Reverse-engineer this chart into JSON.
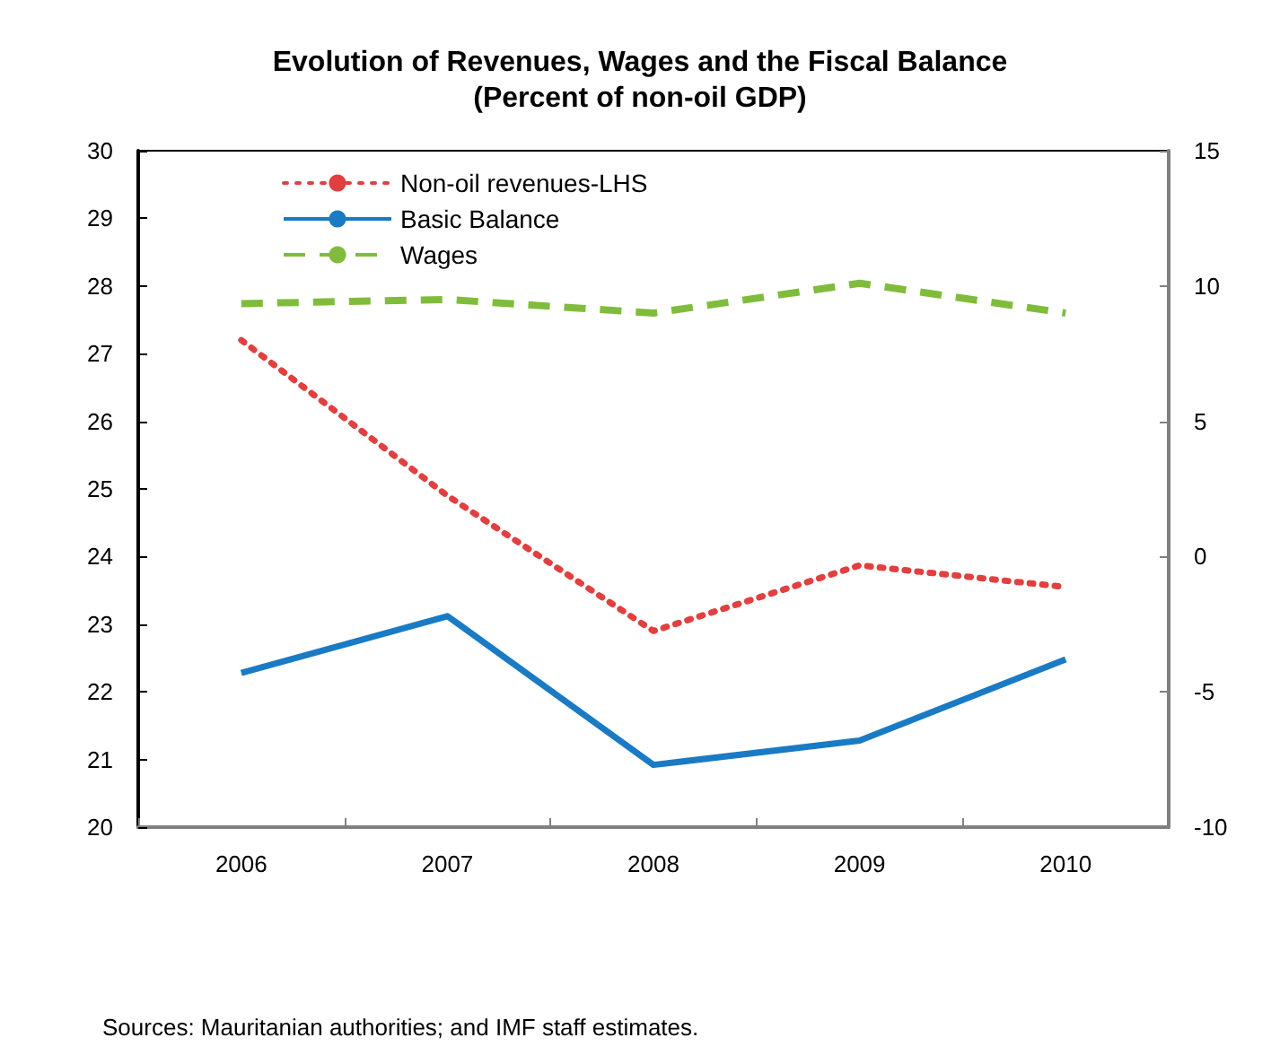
{
  "chart_data": {
    "type": "line",
    "title": "Evolution of Revenues, Wages and the Fiscal Balance\n(Percent of non-oil GDP)",
    "categories": [
      "2006",
      "2007",
      "2008",
      "2009",
      "2010"
    ],
    "series": [
      {
        "name": "Non-oil revenues-LHS",
        "color": "#e04040",
        "line_style": "dotted",
        "values": [
          27.2,
          24.9,
          22.9,
          23.87,
          23.55
        ]
      },
      {
        "name": "Basic Balance",
        "color": "#1a7bc4",
        "line_style": "solid",
        "axis": "y2",
        "values": [
          -4.3,
          -2.2,
          -7.7,
          -6.8,
          -3.8
        ]
      },
      {
        "name": "Wages",
        "color": "#80bc3c",
        "line_style": "dashed",
        "axis": "y2",
        "values": [
          9.35,
          9.5,
          9.0,
          10.1,
          9.0
        ]
      }
    ],
    "ylim": [
      20,
      30
    ],
    "yticks": [
      20,
      21,
      22,
      23,
      24,
      25,
      26,
      27,
      28,
      29,
      30
    ],
    "y2lim": [
      -10,
      15
    ],
    "y2ticks": [
      -10,
      -5,
      0,
      5,
      10,
      15
    ],
    "grid": false,
    "legend": "top left",
    "marker": "none",
    "annotations": [
      "Sources: Mauritanian authorities; and IMF staff estimates."
    ]
  }
}
